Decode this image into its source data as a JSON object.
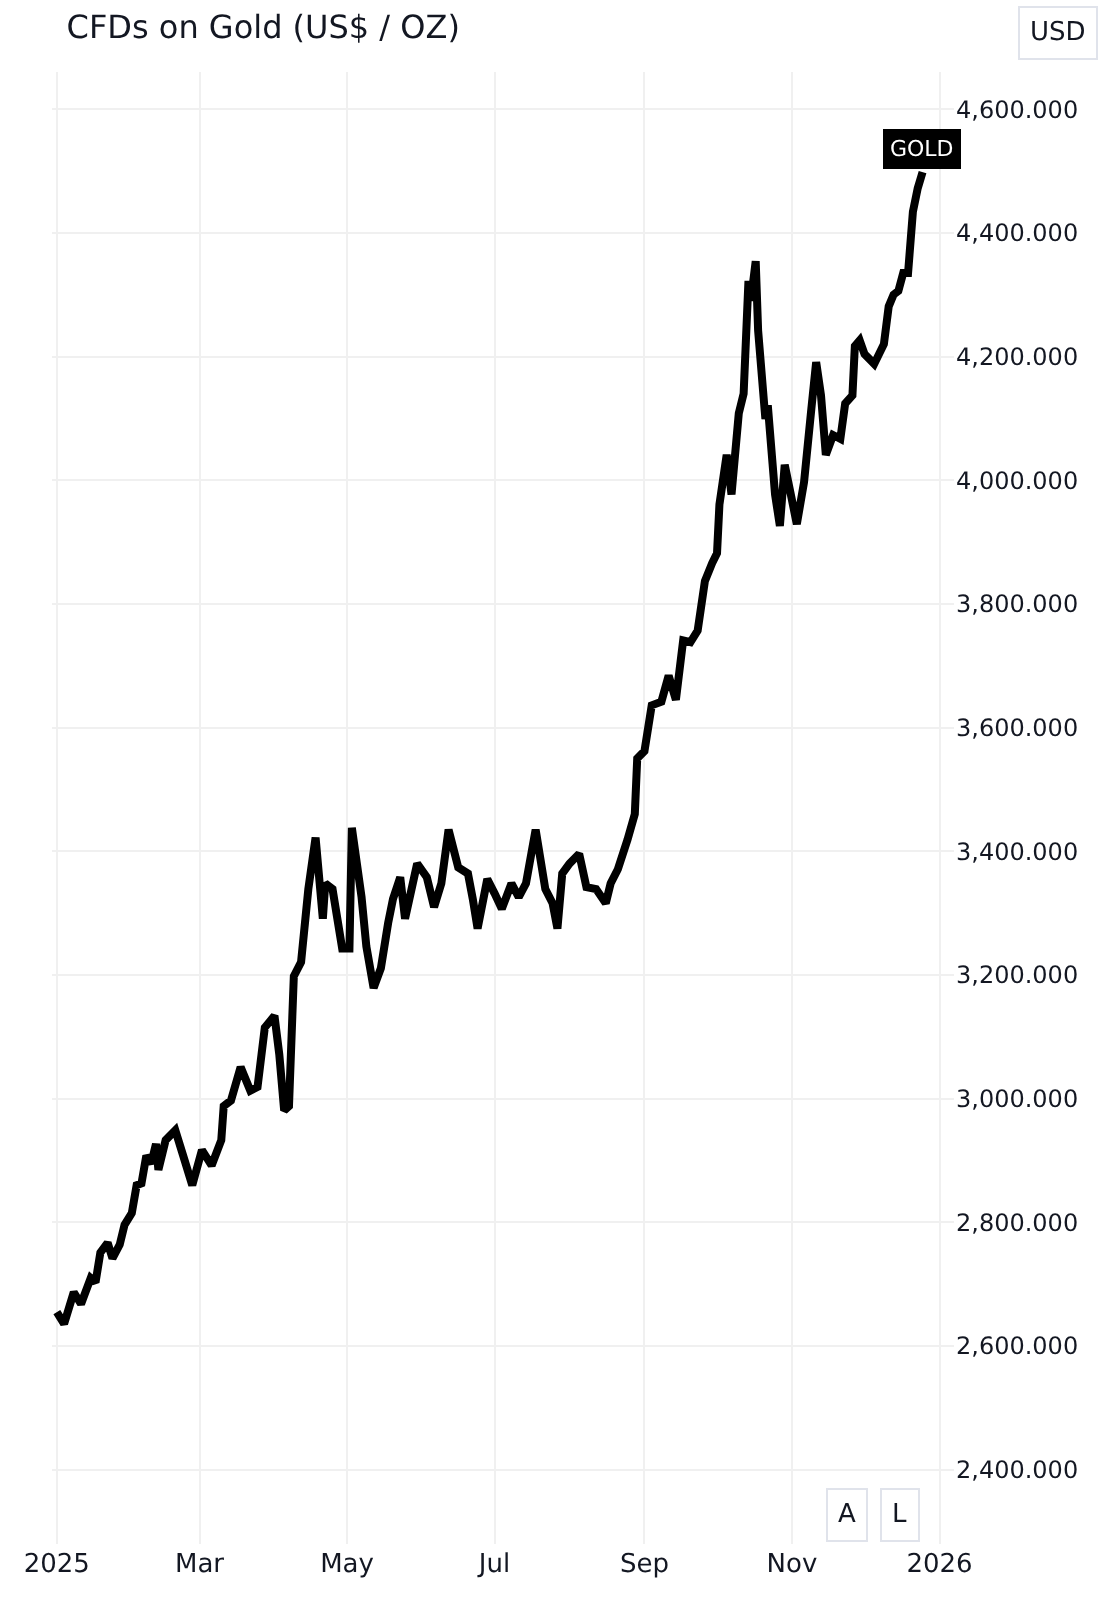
{
  "chart_data": {
    "type": "line",
    "title": "CFDs on Gold (US$ / OZ)",
    "x": [
      "2025-01-01",
      "2025-01-04",
      "2025-01-08",
      "2025-01-11",
      "2025-01-15",
      "2025-01-17",
      "2025-01-19",
      "2025-01-22",
      "2025-01-24",
      "2025-01-27",
      "2025-01-29",
      "2025-02-01",
      "2025-02-03",
      "2025-02-05",
      "2025-02-07",
      "2025-02-09",
      "2025-02-11",
      "2025-02-12",
      "2025-02-15",
      "2025-02-19",
      "2025-02-22",
      "2025-02-26",
      "2025-03-02",
      "2025-03-06",
      "2025-03-10",
      "2025-03-11",
      "2025-03-14",
      "2025-03-18",
      "2025-03-22",
      "2025-03-25",
      "2025-03-28",
      "2025-04-01",
      "2025-04-03",
      "2025-04-05",
      "2025-04-07",
      "2025-04-09",
      "2025-04-12",
      "2025-04-15",
      "2025-04-18",
      "2025-04-21",
      "2025-04-22",
      "2025-04-25",
      "2025-04-29",
      "2025-05-02",
      "2025-05-03",
      "2025-05-07",
      "2025-05-09",
      "2025-05-12",
      "2025-05-15",
      "2025-05-18",
      "2025-05-20",
      "2025-05-23",
      "2025-05-25",
      "2025-05-30",
      "2025-06-03",
      "2025-06-06",
      "2025-06-09",
      "2025-06-12",
      "2025-06-16",
      "2025-06-20",
      "2025-06-22",
      "2025-06-24",
      "2025-06-28",
      "2025-07-01",
      "2025-07-04",
      "2025-07-08",
      "2025-07-11",
      "2025-07-14",
      "2025-07-18",
      "2025-07-22",
      "2025-07-25",
      "2025-07-27",
      "2025-07-29",
      "2025-08-01",
      "2025-08-05",
      "2025-08-08",
      "2025-08-12",
      "2025-08-16",
      "2025-08-18",
      "2025-08-21",
      "2025-08-25",
      "2025-08-28",
      "2025-08-29",
      "2025-09-01",
      "2025-09-04",
      "2025-09-08",
      "2025-09-11",
      "2025-09-14",
      "2025-09-17",
      "2025-09-20",
      "2025-09-23",
      "2025-09-26",
      "2025-09-29",
      "2025-10-01",
      "2025-10-02",
      "2025-10-05",
      "2025-10-07",
      "2025-10-10",
      "2025-10-12",
      "2025-10-14",
      "2025-10-15",
      "2025-10-17",
      "2025-10-18",
      "2025-10-21",
      "2025-10-22",
      "2025-10-25",
      "2025-10-27",
      "2025-10-29",
      "2025-10-31",
      "2025-11-03",
      "2025-11-06",
      "2025-11-09",
      "2025-11-11",
      "2025-11-13",
      "2025-11-15",
      "2025-11-18",
      "2025-11-21",
      "2025-11-23",
      "2025-11-26",
      "2025-11-27",
      "2025-11-29",
      "2025-12-01",
      "2025-12-05",
      "2025-12-09",
      "2025-12-11",
      "2025-12-13",
      "2025-12-15",
      "2025-12-17",
      "2025-12-19",
      "2025-12-21",
      "2025-12-23",
      "2025-12-25"
    ],
    "series": [
      {
        "color": "#000000",
        "values": [
          2655,
          2636,
          2687,
          2668,
          2710,
          2703,
          2751,
          2767,
          2742,
          2764,
          2796,
          2815,
          2860,
          2863,
          2908,
          2895,
          2927,
          2885,
          2933,
          2949,
          2911,
          2860,
          2917,
          2892,
          2933,
          2988,
          2997,
          3051,
          3013,
          3019,
          3115,
          3134,
          3071,
          2981,
          2988,
          3198,
          3221,
          3339,
          3422,
          3291,
          3348,
          3339,
          3243,
          3243,
          3438,
          3326,
          3246,
          3179,
          3211,
          3284,
          3323,
          3358,
          3291,
          3380,
          3358,
          3310,
          3348,
          3435,
          3374,
          3364,
          3323,
          3275,
          3355,
          3332,
          3307,
          3348,
          3326,
          3348,
          3435,
          3339,
          3316,
          3275,
          3364,
          3380,
          3396,
          3342,
          3339,
          3316,
          3348,
          3371,
          3419,
          3460,
          3550,
          3562,
          3636,
          3642,
          3684,
          3645,
          3741,
          3738,
          3757,
          3837,
          3866,
          3882,
          3961,
          4041,
          3977,
          4108,
          4140,
          4322,
          4290,
          4354,
          4242,
          4099,
          4121,
          3977,
          3926,
          4025,
          3987,
          3929,
          3997,
          4115,
          4191,
          4137,
          4041,
          4073,
          4067,
          4124,
          4137,
          4217,
          4226,
          4204,
          4188,
          4220,
          4281,
          4300,
          4306,
          4335,
          4335,
          4434,
          4472,
          4498
        ]
      }
    ],
    "xlim": [
      "2024-12-30",
      "2026-01-07"
    ],
    "xticks": [
      {
        "value": "2025-01-01",
        "label": "2025"
      },
      {
        "value": "2025-03-01",
        "label": "Mar"
      },
      {
        "value": "2025-05-01",
        "label": "May"
      },
      {
        "value": "2025-07-01",
        "label": "Jul"
      },
      {
        "value": "2025-09-01",
        "label": "Sep"
      },
      {
        "value": "2025-11-01",
        "label": "Nov"
      },
      {
        "value": "2026-01-01",
        "label": "2026"
      }
    ],
    "ylim": [
      2280,
      4660
    ],
    "yticks": [
      {
        "value": 2400,
        "label": "2,400.000"
      },
      {
        "value": 2600,
        "label": "2,600.000"
      },
      {
        "value": 2800,
        "label": "2,800.000"
      },
      {
        "value": 3000,
        "label": "3,000.000"
      },
      {
        "value": 3200,
        "label": "3,200.000"
      },
      {
        "value": 3400,
        "label": "3,400.000"
      },
      {
        "value": 3600,
        "label": "3,600.000"
      },
      {
        "value": 3800,
        "label": "3,800.000"
      },
      {
        "value": 4000,
        "label": "4,000.000"
      },
      {
        "value": 4200,
        "label": "4,200.000"
      },
      {
        "value": 4400,
        "label": "4,400.000"
      },
      {
        "value": 4600,
        "label": "4,600.000"
      }
    ],
    "grid": true,
    "annotations": [
      {
        "text": "GOLD",
        "x": "2025-12-25",
        "y": 4498
      },
      "USD",
      "A",
      "L"
    ]
  }
}
